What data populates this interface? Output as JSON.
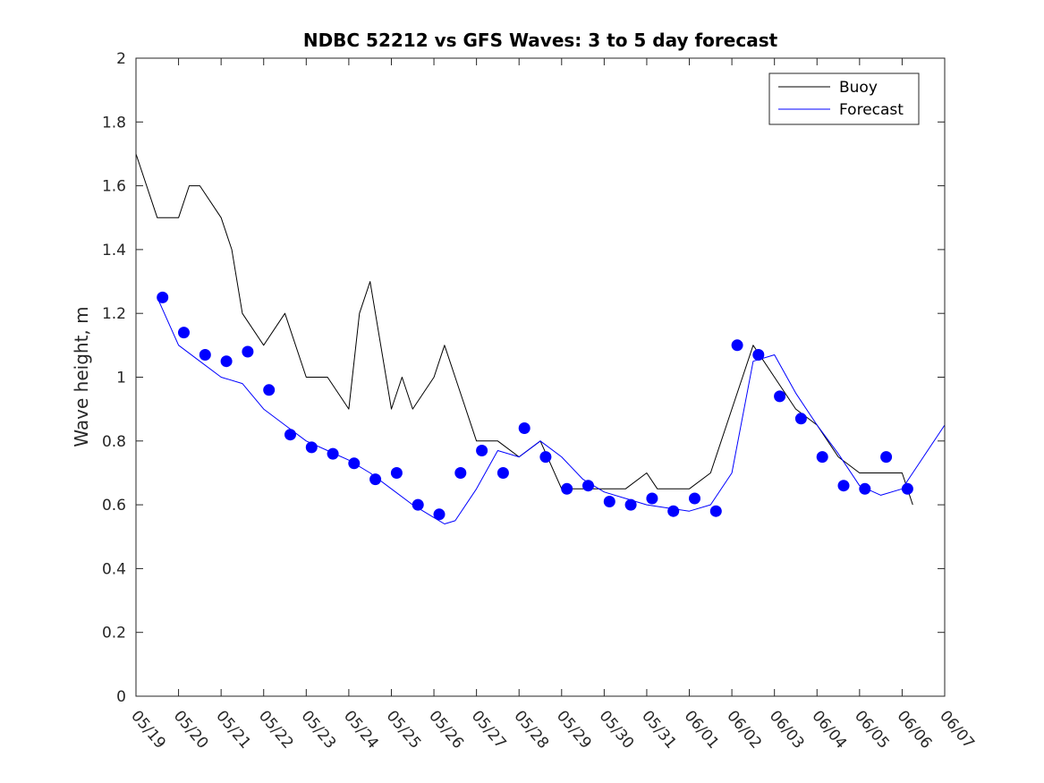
{
  "chart_data": {
    "type": "line",
    "title": "NDBC 52212 vs GFS Waves: 3 to 5 day forecast",
    "xlabel": "",
    "ylabel": "Wave height, m",
    "x_unit": "date (UTC day)",
    "x_ticks": [
      "05/19",
      "05/20",
      "05/21",
      "05/22",
      "05/23",
      "05/24",
      "05/25",
      "05/26",
      "05/27",
      "05/28",
      "05/29",
      "05/30",
      "05/31",
      "06/01",
      "06/02",
      "06/03",
      "06/04",
      "06/05",
      "06/06",
      "06/07"
    ],
    "y_ticks": [
      "0",
      "0.2",
      "0.4",
      "0.6",
      "0.8",
      "1",
      "1.2",
      "1.4",
      "1.6",
      "1.8",
      "2"
    ],
    "ylim": [
      0,
      2
    ],
    "xlim": [
      "05/19",
      "06/07"
    ],
    "grid": false,
    "legend": {
      "placement": "top-right",
      "entries": [
        "Buoy",
        "Forecast"
      ]
    },
    "colors": {
      "buoy": "#000000",
      "forecast": "#0000ff",
      "axis": "#262626"
    },
    "series": [
      {
        "name": "Buoy",
        "style": "line-black",
        "x": [
          "05/19 00:00",
          "05/19 12:00",
          "05/20 00:00",
          "05/20 06:00",
          "05/20 12:00",
          "05/21 00:00",
          "05/21 06:00",
          "05/21 12:00",
          "05/22 00:00",
          "05/22 12:00",
          "05/23 00:00",
          "05/23 12:00",
          "05/24 00:00",
          "05/24 06:00",
          "05/24 12:00",
          "05/25 00:00",
          "05/25 06:00",
          "05/25 12:00",
          "05/26 00:00",
          "05/26 06:00",
          "05/26 12:00",
          "05/27 00:00",
          "05/27 12:00",
          "05/28 00:00",
          "05/28 12:00",
          "05/29 00:00",
          "05/29 12:00",
          "05/30 00:00",
          "05/30 12:00",
          "05/31 00:00",
          "05/31 06:00",
          "05/31 12:00",
          "06/01 00:00",
          "06/01 12:00",
          "06/02 00:00",
          "06/02 06:00",
          "06/02 12:00",
          "06/03 00:00",
          "06/03 12:00",
          "06/04 00:00",
          "06/04 12:00",
          "06/05 00:00",
          "06/05 12:00",
          "06/06 00:00",
          "06/06 06:00"
        ],
        "y": [
          1.7,
          1.5,
          1.5,
          1.6,
          1.6,
          1.5,
          1.4,
          1.2,
          1.1,
          1.2,
          1.0,
          1.0,
          0.9,
          1.2,
          1.3,
          0.9,
          1.0,
          0.9,
          1.0,
          1.1,
          1.0,
          0.8,
          0.8,
          0.75,
          0.8,
          0.65,
          0.65,
          0.65,
          0.65,
          0.7,
          0.65,
          0.65,
          0.65,
          0.7,
          0.9,
          1.0,
          1.1,
          1.0,
          0.9,
          0.85,
          0.75,
          0.7,
          0.7,
          0.7,
          0.6
        ]
      },
      {
        "name": "Forecast",
        "style": "line-blue",
        "x": [
          "05/19 12:00",
          "05/20 00:00",
          "05/20 12:00",
          "05/21 00:00",
          "05/21 12:00",
          "05/22 00:00",
          "05/22 12:00",
          "05/23 00:00",
          "05/23 12:00",
          "05/24 00:00",
          "05/24 12:00",
          "05/25 00:00",
          "05/25 12:00",
          "05/26 00:00",
          "05/26 06:00",
          "05/26 12:00",
          "05/27 00:00",
          "05/27 12:00",
          "05/28 00:00",
          "05/28 12:00",
          "05/29 00:00",
          "05/29 12:00",
          "05/30 00:00",
          "05/30 12:00",
          "05/31 00:00",
          "05/31 12:00",
          "06/01 00:00",
          "06/01 12:00",
          "06/02 00:00",
          "06/02 12:00",
          "06/03 00:00",
          "06/03 12:00",
          "06/04 00:00",
          "06/04 12:00",
          "06/05 00:00",
          "06/05 12:00",
          "06/06 00:00",
          "06/06 12:00",
          "06/07 00:00"
        ],
        "y": [
          1.25,
          1.1,
          1.05,
          1.0,
          0.98,
          0.9,
          0.85,
          0.8,
          0.77,
          0.74,
          0.7,
          0.65,
          0.6,
          0.56,
          0.54,
          0.55,
          0.65,
          0.77,
          0.75,
          0.8,
          0.75,
          0.68,
          0.64,
          0.62,
          0.6,
          0.59,
          0.58,
          0.6,
          0.7,
          1.05,
          1.07,
          0.95,
          0.85,
          0.76,
          0.66,
          0.63,
          0.65,
          0.75,
          0.85
        ]
      },
      {
        "name": "",
        "style": "markers-blue",
        "x": [
          "05/19 15:00",
          "05/20 03:00",
          "05/20 15:00",
          "05/21 03:00",
          "05/21 15:00",
          "05/22 03:00",
          "05/22 15:00",
          "05/23 03:00",
          "05/23 15:00",
          "05/24 03:00",
          "05/24 15:00",
          "05/25 03:00",
          "05/25 15:00",
          "05/26 03:00",
          "05/26 15:00",
          "05/27 03:00",
          "05/27 15:00",
          "05/28 03:00",
          "05/28 15:00",
          "05/29 03:00",
          "05/29 15:00",
          "05/30 03:00",
          "05/30 15:00",
          "05/31 03:00",
          "05/31 15:00",
          "06/01 03:00",
          "06/01 15:00",
          "06/02 03:00",
          "06/02 15:00",
          "06/03 03:00",
          "06/03 15:00",
          "06/04 03:00",
          "06/04 15:00",
          "06/05 03:00",
          "06/05 15:00",
          "06/06 03:00"
        ],
        "y": [
          1.25,
          1.14,
          1.07,
          1.05,
          1.08,
          0.96,
          0.82,
          0.78,
          0.76,
          0.73,
          0.68,
          0.7,
          0.6,
          0.57,
          0.7,
          0.77,
          0.7,
          0.84,
          0.75,
          0.65,
          0.66,
          0.61,
          0.6,
          0.62,
          0.58,
          0.62,
          0.58,
          1.1,
          1.07,
          0.94,
          0.87,
          0.75,
          0.66,
          0.65,
          0.75,
          0.65
        ]
      }
    ]
  }
}
